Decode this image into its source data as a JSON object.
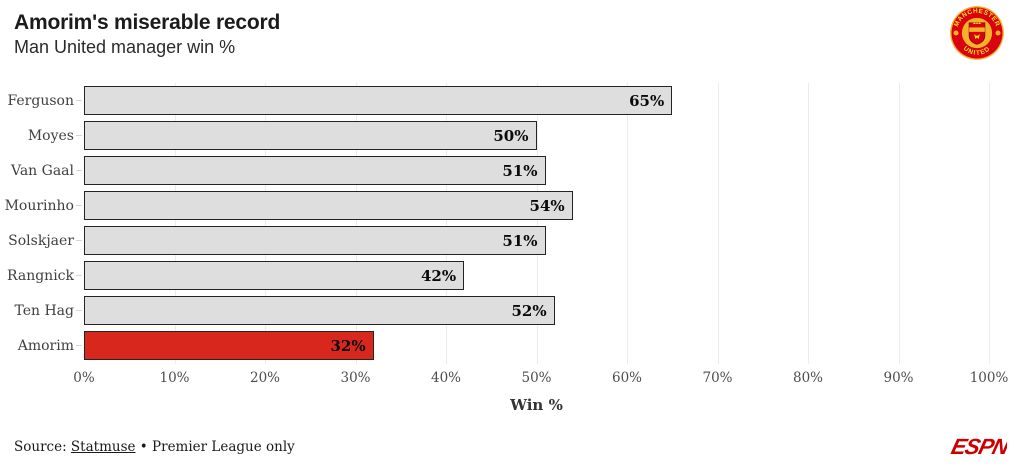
{
  "header": {
    "title": "Amorim's miserable record",
    "subtitle": "Man United manager win %"
  },
  "crest": {
    "top_text": "MANCHESTER",
    "bottom_text": "UNITED",
    "red": "#da020e",
    "gold": "#fbe122"
  },
  "chart_data": {
    "type": "bar",
    "orientation": "horizontal",
    "categories": [
      "Ferguson",
      "Moyes",
      "Van Gaal",
      "Mourinho",
      "Solskjaer",
      "Rangnick",
      "Ten Hag",
      "Amorim"
    ],
    "values": [
      65,
      50,
      51,
      54,
      51,
      42,
      52,
      32
    ],
    "value_labels": [
      "65%",
      "50%",
      "51%",
      "54%",
      "51%",
      "42%",
      "52%",
      "32%"
    ],
    "xlabel": "Win %",
    "xlim": [
      0,
      100
    ],
    "xticks": [
      0,
      10,
      20,
      30,
      40,
      50,
      60,
      70,
      80,
      90,
      100
    ],
    "xtick_labels": [
      "0%",
      "10%",
      "20%",
      "30%",
      "40%",
      "50%",
      "60%",
      "70%",
      "80%",
      "90%",
      "100%"
    ],
    "grid": "vertical",
    "legend": "none",
    "bar_color_default": "#dedede",
    "bar_color_highlight": "#d8281e",
    "highlight_category": "Amorim",
    "bar_border_color": "#242424"
  },
  "footer": {
    "source_label": "Source:",
    "source_link": "Statmuse",
    "source_rest": "• Premier League only",
    "espn_text": "ESPN",
    "espn_color": "#cc0000"
  }
}
